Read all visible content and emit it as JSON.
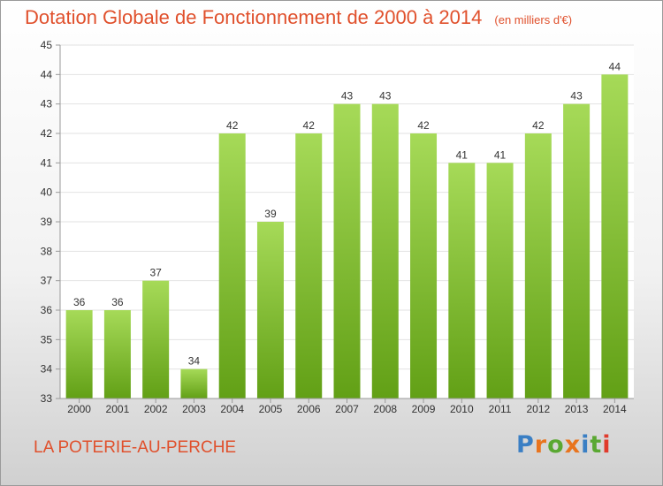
{
  "header": {
    "title": "Dotation Globale de Fonctionnement de 2000 à 2014",
    "unit": "(en milliers d'€)"
  },
  "footer": {
    "commune": "LA POTERIE-AU-PERCHE",
    "logo_text": "Proxiti",
    "logo_colors": [
      "#3a7fc4",
      "#e8741e",
      "#5aa832",
      "#e8741e",
      "#3a7fc4",
      "#5aa832",
      "#e03b2c"
    ]
  },
  "colors": {
    "accent": "#e0502c",
    "bar_light": "#a6da58",
    "bar_dark": "#62a016",
    "grid": "#e2e2e2",
    "axis": "#999999"
  },
  "chart_data": {
    "type": "bar",
    "categories": [
      "2000",
      "2001",
      "2002",
      "2003",
      "2004",
      "2005",
      "2006",
      "2007",
      "2008",
      "2009",
      "2010",
      "2011",
      "2012",
      "2013",
      "2014"
    ],
    "values": [
      36,
      36,
      37,
      34,
      42,
      39,
      42,
      43,
      43,
      42,
      41,
      41,
      42,
      43,
      44
    ],
    "data_labels": [
      "36",
      "36",
      "37",
      "34",
      "42",
      "39",
      "42",
      "43",
      "43",
      "42",
      "41",
      "41",
      "42",
      "43",
      "44"
    ],
    "y_ticks": [
      "33",
      "34",
      "35",
      "36",
      "37",
      "38",
      "39",
      "40",
      "41",
      "42",
      "43",
      "44",
      "45"
    ],
    "ylim": [
      33,
      45
    ],
    "grid": true,
    "title": "Dotation Globale de Fonctionnement de 2000 à 2014",
    "xlabel": "",
    "ylabel": ""
  }
}
